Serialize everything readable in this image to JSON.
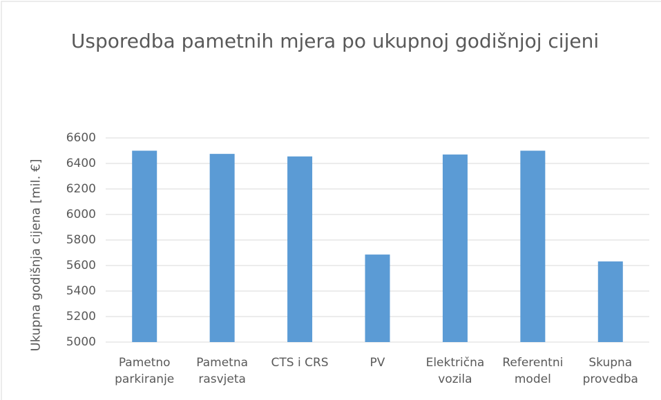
{
  "chart_data": {
    "type": "bar",
    "title": "Usporedba pametnih mjera po ukupnoj godišnjoj cijeni",
    "y_label": "Ukupna godišnja cijena [mil. €]",
    "categories": [
      "Pametno parkiranje",
      "Pametna rasvjeta",
      "CTS i CRS",
      "PV",
      "Električna vozila",
      "Referentni model",
      "Skupna provedba"
    ],
    "values": [
      6500,
      6475,
      6455,
      5686,
      6470,
      6500,
      5632
    ],
    "color": "#5b9bd5",
    "ylim": [
      5000,
      6600
    ],
    "yticks": [
      5000,
      5200,
      5400,
      5600,
      5800,
      6000,
      6200,
      6400,
      6600
    ],
    "grid": true
  }
}
